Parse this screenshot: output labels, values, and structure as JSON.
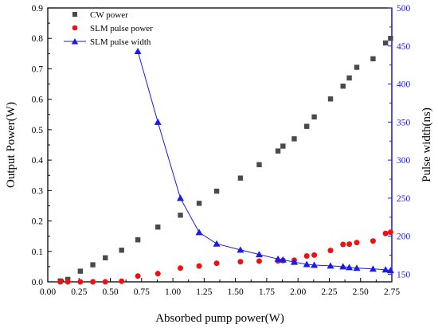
{
  "chart_data": {
    "type": "scatter",
    "title": "",
    "xlabel": "Absorbed pump power(W)",
    "ylabel_left": "Output Power(W)",
    "ylabel_right": "Pulse width(ns)",
    "xlim": [
      0.0,
      2.75
    ],
    "ylim_left": [
      0.0,
      0.9
    ],
    "ylim_right": [
      140,
      500
    ],
    "x_ticks": [
      "0.00",
      "0.25",
      "0.50",
      "0.75",
      "1.00",
      "1.25",
      "1.50",
      "1.75",
      "2.00",
      "2.25",
      "2.50",
      "2.75"
    ],
    "y_left_ticks": [
      "0.0",
      "0.1",
      "0.2",
      "0.3",
      "0.4",
      "0.5",
      "0.6",
      "0.7",
      "0.8",
      "0.9"
    ],
    "y_right_ticks": [
      "150",
      "200",
      "250",
      "300",
      "350",
      "400",
      "450",
      "500"
    ],
    "grid": false,
    "legend_position": "top-left",
    "legend": [
      "CW power",
      "SLM pulse power",
      "SLM pulse width"
    ],
    "series": [
      {
        "name": "CW power",
        "axis": "left",
        "marker": "square",
        "color": "#4a4a4a",
        "line": false,
        "x": [
          0.1,
          0.16,
          0.26,
          0.36,
          0.46,
          0.59,
          0.72,
          0.88,
          1.06,
          1.21,
          1.35,
          1.54,
          1.69,
          1.84,
          1.88,
          1.97,
          2.07,
          2.13,
          2.26,
          2.36,
          2.41,
          2.47,
          2.6,
          2.7,
          2.74
        ],
        "y": [
          0.003,
          0.008,
          0.035,
          0.056,
          0.079,
          0.104,
          0.138,
          0.18,
          0.219,
          0.258,
          0.298,
          0.341,
          0.385,
          0.43,
          0.446,
          0.47,
          0.511,
          0.542,
          0.601,
          0.643,
          0.67,
          0.705,
          0.733,
          0.785,
          0.8
        ]
      },
      {
        "name": "SLM pulse power",
        "axis": "left",
        "marker": "circle",
        "color": "#ee1111",
        "line": false,
        "x": [
          0.1,
          0.16,
          0.26,
          0.36,
          0.46,
          0.59,
          0.72,
          0.88,
          1.06,
          1.21,
          1.35,
          1.54,
          1.69,
          1.84,
          1.88,
          1.97,
          2.07,
          2.13,
          2.26,
          2.36,
          2.41,
          2.47,
          2.6,
          2.7,
          2.74
        ],
        "y": [
          0.0,
          0.0,
          0.0,
          0.0,
          0.0,
          0.002,
          0.019,
          0.027,
          0.045,
          0.052,
          0.061,
          0.066,
          0.068,
          0.069,
          0.07,
          0.071,
          0.085,
          0.088,
          0.103,
          0.123,
          0.124,
          0.129,
          0.134,
          0.159,
          0.163
        ]
      },
      {
        "name": "SLM pulse width",
        "axis": "right",
        "marker": "triangle",
        "color": "#1a1aee",
        "line": true,
        "x": [
          0.72,
          0.88,
          1.06,
          1.21,
          1.35,
          1.54,
          1.69,
          1.84,
          1.88,
          1.97,
          2.07,
          2.13,
          2.26,
          2.36,
          2.41,
          2.47,
          2.6,
          2.7,
          2.74
        ],
        "y": [
          443,
          350,
          250,
          205,
          190,
          182,
          176,
          170,
          169,
          166,
          163,
          162,
          161,
          160,
          159,
          158,
          157,
          156,
          155
        ]
      }
    ]
  }
}
